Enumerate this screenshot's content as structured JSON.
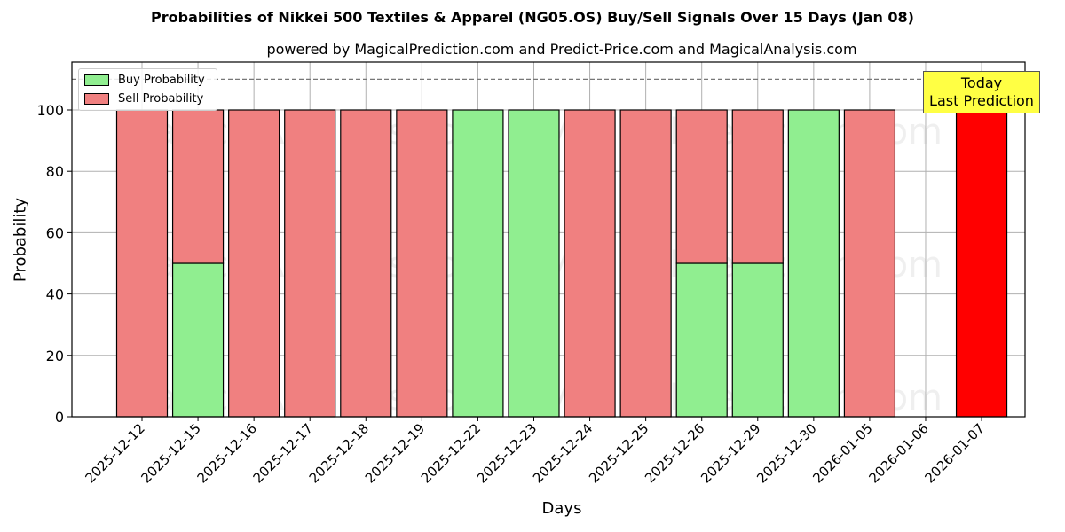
{
  "title": "Probabilities of Nikkei 500 Textiles & Apparel (NG05.OS) Buy/Sell Signals Over 15 Days (Jan 08)",
  "subtitle": "powered by MagicalPrediction.com and Predict-Price.com and MagicalAnalysis.com",
  "legend": {
    "buy_label": "Buy Probability",
    "sell_label": "Sell Probability"
  },
  "annotation": {
    "line1": "Today",
    "line2": "Last Prediction"
  },
  "watermarks": [
    "MagicalAnalysis.com",
    "MagicalPrediction.com"
  ],
  "colors": {
    "buy": "#90ee90",
    "sell": "#f08080",
    "today": "#ff0000",
    "annotation_bg": "#ffff44"
  },
  "chart_data": {
    "type": "bar",
    "stacked": true,
    "title": "Probabilities of Nikkei 500 Textiles & Apparel (NG05.OS) Buy/Sell Signals Over 15 Days (Jan 08)",
    "subtitle": "powered by MagicalPrediction.com and Predict-Price.com and MagicalAnalysis.com",
    "xlabel": "Days",
    "ylabel": "Probability",
    "ylim": [
      0,
      115
    ],
    "yticks": [
      0,
      20,
      40,
      60,
      80,
      100
    ],
    "grid": true,
    "legend_position": "upper left",
    "reference_line": {
      "y": 110,
      "style": "dashed"
    },
    "categories": [
      "2025-12-12",
      "2025-12-15",
      "2025-12-16",
      "2025-12-17",
      "2025-12-18",
      "2025-12-19",
      "2025-12-22",
      "2025-12-23",
      "2025-12-24",
      "2025-12-25",
      "2025-12-26",
      "2025-12-29",
      "2025-12-30",
      "2026-01-05",
      "2026-01-06",
      "2026-01-07"
    ],
    "series": [
      {
        "name": "Buy Probability",
        "values": [
          0,
          50,
          0,
          0,
          0,
          0,
          100,
          100,
          0,
          0,
          50,
          50,
          100,
          0,
          0,
          0
        ]
      },
      {
        "name": "Sell Probability",
        "values": [
          100,
          50,
          100,
          100,
          100,
          100,
          0,
          0,
          100,
          100,
          50,
          50,
          0,
          100,
          0,
          100
        ]
      }
    ],
    "highlight": {
      "category": "2026-01-07",
      "label": "Today Last Prediction",
      "color": "#ff0000"
    }
  }
}
